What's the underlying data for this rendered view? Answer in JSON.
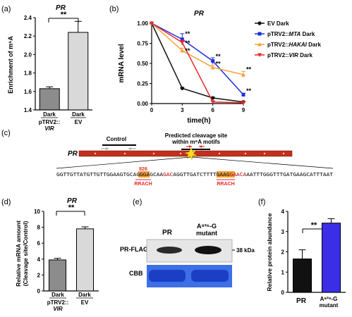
{
  "panels": {
    "a": {
      "label": "(a)",
      "title": "PR",
      "sig": "**",
      "ylabel": "Enrichment of m⁶A",
      "yticks": [
        "1.4",
        "1.6",
        "1.8",
        "2.0",
        "2.2",
        "2.4"
      ],
      "xcat1_top": "Dark",
      "xcat2_top": "Dark",
      "xcat1_bot1": "pTRV2::",
      "xcat1_bot2": "VIR",
      "xcat2_bot": "EV"
    },
    "b": {
      "label": "(b)",
      "title": "PR",
      "ylabel": "mRNA level",
      "xlabel": "time(h)",
      "yticks": [
        "0.00",
        "0.25",
        "0.50",
        "0.75",
        "1.00"
      ],
      "xticks": [
        "0",
        "3",
        "6",
        "9"
      ],
      "legend": [
        "EV Dark",
        "pTRV2::MTA Dark",
        "pTRV2::HAKAI Dark",
        "pTRV2::VIR Dark"
      ],
      "sig": "**"
    },
    "c": {
      "label": "(c)",
      "gene": "PR",
      "control": "Control",
      "predicted1": "Predicted cleavage site",
      "predicted2": "within m⁶A motifs",
      "seq_a": "GGTTGTTATGTTGTTGGAAGTGCAGGGAGCAA",
      "seq_motif1": "GAC",
      "seq_b": "AGGTTGATCTTTTGAAG",
      "seq_motif2": "GAACA",
      "seq_c": "AATTTGGGTTTGATGAAGCATTTAAT",
      "pos": "826",
      "motif_label": "RRACH"
    },
    "d": {
      "label": "(d)",
      "title": "PR",
      "sig": "**",
      "ylabel1": "Relative mRNA amount",
      "ylabel2": "(Cleavage site/Control)",
      "yticks": [
        "0",
        "2",
        "4",
        "6",
        "8",
        "10"
      ],
      "xcat1_top": "Dark",
      "xcat2_top": "Dark",
      "xcat1_bot1": "pTRV2::",
      "xcat1_bot2": "VIR",
      "xcat2_bot": "EV"
    },
    "e": {
      "label": "(e)",
      "lane1": "PR",
      "lane2a": "A⁸²⁶-G",
      "lane2b": "mutant",
      "row1": "PR-FLAG",
      "row2": "CBB",
      "kda": "38 kDa"
    },
    "f": {
      "label": "(f)",
      "sig": "**",
      "ylabel": "Relative protein abundance",
      "yticks": [
        "0",
        "1",
        "2",
        "3",
        "4"
      ],
      "xcat1": "PR",
      "xcat2a": "A⁸²⁶-G",
      "xcat2b": "mutant"
    }
  },
  "colors": {
    "gray_dark": "#8c8c8c",
    "gray_light": "#d9d9d9",
    "ev": "#111111",
    "mta": "#1f2fe0",
    "hakai": "#f4a23a",
    "vir": "#e8282c",
    "gene_bar": "#c0301d",
    "blue_bar": "#3a2ee6"
  },
  "chart_data": [
    {
      "panel": "a",
      "type": "bar",
      "categories": [
        "Dark pTRV2::VIR",
        "Dark EV"
      ],
      "values": [
        1.63,
        2.24
      ],
      "errors": [
        0.02,
        0.12
      ],
      "ylim": [
        1.4,
        2.4
      ],
      "ylabel": "Enrichment of m⁶A",
      "title": "PR"
    },
    {
      "panel": "b",
      "type": "line",
      "title": "PR",
      "xlabel": "time(h)",
      "ylabel": "mRNA level",
      "x": [
        0,
        3,
        6,
        9
      ],
      "ylim": [
        0,
        1
      ],
      "series": [
        {
          "name": "EV Dark",
          "values": [
            1.0,
            0.19,
            0.07,
            0.02
          ]
        },
        {
          "name": "pTRV2::MTA Dark",
          "values": [
            1.0,
            0.8,
            0.53,
            0.11
          ]
        },
        {
          "name": "pTRV2::HAKAI Dark",
          "values": [
            1.0,
            0.66,
            0.45,
            0.36
          ]
        },
        {
          "name": "pTRV2::VIR Dark",
          "values": [
            1.0,
            0.76,
            0.02,
            0.01
          ]
        }
      ]
    },
    {
      "panel": "d",
      "type": "bar",
      "categories": [
        "Dark pTRV2::VIR",
        "Dark EV"
      ],
      "values": [
        3.9,
        7.8
      ],
      "errors": [
        0.2,
        0.25
      ],
      "ylim": [
        0,
        10
      ],
      "title": "PR"
    },
    {
      "panel": "f",
      "type": "bar",
      "categories": [
        "PR",
        "A⁸²⁶-G mutant"
      ],
      "values": [
        1.65,
        3.42
      ],
      "errors": [
        0.45,
        0.22
      ],
      "ylim": [
        0,
        4
      ],
      "ylabel": "Relative protein abundance"
    }
  ]
}
